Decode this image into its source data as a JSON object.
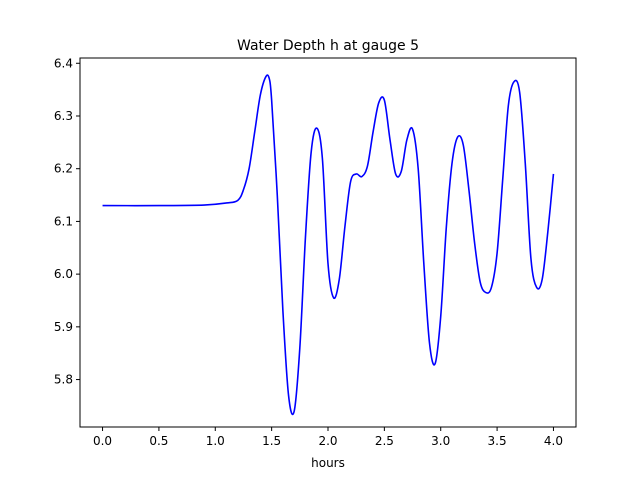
{
  "chart_data": {
    "type": "line",
    "title": "Water Depth h at gauge 5",
    "xlabel": "hours",
    "ylabel": "",
    "xlim": [
      -0.2,
      4.2
    ],
    "ylim": [
      5.71,
      6.41
    ],
    "xticks": [
      "0.0",
      "0.5",
      "1.0",
      "1.5",
      "2.0",
      "2.5",
      "3.0",
      "3.5",
      "4.0"
    ],
    "yticks": [
      "5.8",
      "5.9",
      "6.0",
      "6.1",
      "6.2",
      "6.3",
      "6.4"
    ],
    "grid": false,
    "legend": "none",
    "series": [
      {
        "color": "#0000ff",
        "x": [
          0.0,
          0.5,
          0.9,
          1.1,
          1.2,
          1.25,
          1.3,
          1.35,
          1.4,
          1.45,
          1.48,
          1.5,
          1.55,
          1.6,
          1.65,
          1.7,
          1.75,
          1.8,
          1.85,
          1.9,
          1.95,
          2.0,
          2.05,
          2.1,
          2.15,
          2.2,
          2.25,
          2.3,
          2.35,
          2.4,
          2.45,
          2.5,
          2.55,
          2.6,
          2.65,
          2.7,
          2.75,
          2.8,
          2.85,
          2.9,
          2.95,
          3.0,
          3.05,
          3.1,
          3.15,
          3.2,
          3.25,
          3.3,
          3.35,
          3.4,
          3.45,
          3.5,
          3.55,
          3.6,
          3.65,
          3.7,
          3.75,
          3.8,
          3.85,
          3.9,
          3.95,
          4.0
        ],
        "values": [
          6.13,
          6.13,
          6.131,
          6.135,
          6.14,
          6.16,
          6.2,
          6.27,
          6.34,
          6.375,
          6.37,
          6.33,
          6.15,
          5.93,
          5.77,
          5.74,
          5.86,
          6.07,
          6.23,
          6.277,
          6.22,
          6.02,
          5.955,
          5.99,
          6.09,
          6.175,
          6.19,
          6.185,
          6.205,
          6.27,
          6.325,
          6.33,
          6.255,
          6.19,
          6.195,
          6.255,
          6.275,
          6.2,
          6.02,
          5.87,
          5.83,
          5.92,
          6.09,
          6.21,
          6.26,
          6.245,
          6.16,
          6.06,
          5.985,
          5.965,
          5.975,
          6.04,
          6.18,
          6.32,
          6.365,
          6.345,
          6.21,
          6.03,
          5.975,
          5.99,
          6.08,
          6.19
        ]
      }
    ]
  }
}
